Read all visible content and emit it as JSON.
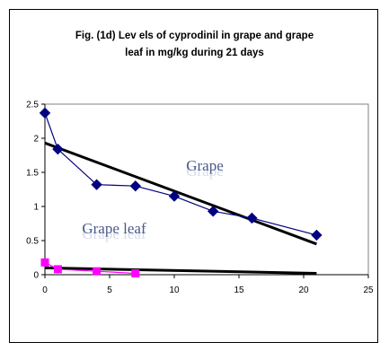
{
  "chart_data": {
    "type": "line",
    "title_lines": [
      "Fig. (1d) Lev els of cyprodinil in grape and grape",
      "leaf in mg/kg during 21 days"
    ],
    "xlabel": "",
    "ylabel": "",
    "xlim": [
      0,
      25
    ],
    "ylim": [
      0,
      2.5
    ],
    "x_ticks": [
      "0",
      "5",
      "10",
      "15",
      "20",
      "25"
    ],
    "y_ticks": [
      "0",
      "0.5",
      "1",
      "1.5",
      "2",
      "2.5"
    ],
    "grid": false,
    "series": [
      {
        "name": "Grape",
        "color": "#000080",
        "marker": "diamond",
        "x": [
          0,
          1,
          4,
          7,
          10,
          13,
          16,
          21
        ],
        "y": [
          2.37,
          1.84,
          1.32,
          1.3,
          1.15,
          0.93,
          0.83,
          0.58
        ],
        "trend": {
          "x": [
            0,
            21
          ],
          "y": [
            1.93,
            0.45
          ]
        }
      },
      {
        "name": "Grape leaf",
        "color": "#ff00ff",
        "marker": "square",
        "x": [
          0,
          1,
          4,
          7
        ],
        "y": [
          0.18,
          0.08,
          0.05,
          0.02
        ],
        "trend": {
          "x": [
            0,
            21
          ],
          "y": [
            0.1,
            0.02
          ]
        }
      }
    ],
    "annotations": [
      {
        "series": 0,
        "text": "Grape",
        "color": "#4a5a8a"
      },
      {
        "series": 1,
        "text": "Grape leaf",
        "color": "#4a5a8a"
      }
    ]
  }
}
